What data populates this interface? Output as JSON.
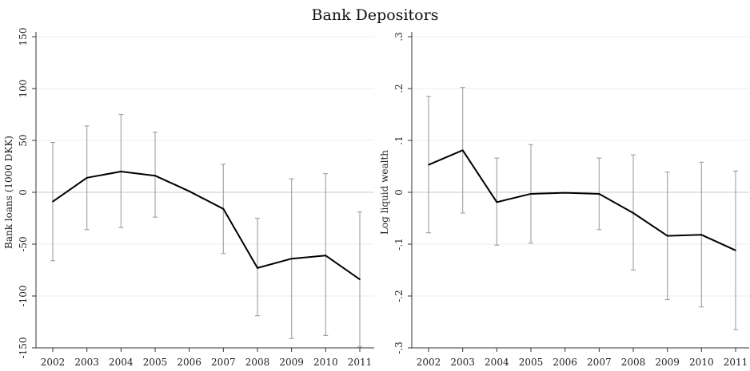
{
  "figure_title": "Bank Depositors",
  "chart_data": [
    {
      "type": "line",
      "title": "",
      "xlabel": "",
      "ylabel": "Bank loans (1000 DKK)",
      "x": [
        2002,
        2003,
        2004,
        2005,
        2006,
        2007,
        2008,
        2009,
        2010,
        2011
      ],
      "ylim": [
        -150,
        150
      ],
      "yticks": [
        -150,
        -100,
        -50,
        0,
        50,
        100,
        150
      ],
      "ytick_labels": [
        "-150",
        "-100",
        "-50",
        "0",
        "50",
        "100",
        "150"
      ],
      "grid": true,
      "series": [
        {
          "values": [
            -9,
            14,
            20,
            16,
            1,
            -16,
            -73,
            -64,
            -61,
            -84
          ],
          "ci_lower": [
            -66,
            -36,
            -34,
            -24,
            null,
            -59,
            -119,
            -141,
            -138,
            -149
          ],
          "ci_upper": [
            48,
            64,
            75,
            58,
            null,
            27,
            -25,
            13,
            18,
            -19
          ]
        }
      ]
    },
    {
      "type": "line",
      "title": "",
      "xlabel": "",
      "ylabel": "Log liquid wealth",
      "x": [
        2002,
        2003,
        2004,
        2005,
        2006,
        2007,
        2008,
        2009,
        2010,
        2011
      ],
      "ylim": [
        -0.3,
        0.3
      ],
      "yticks": [
        -0.3,
        -0.2,
        -0.1,
        0,
        0.1,
        0.2,
        0.3
      ],
      "ytick_labels": [
        "-.3",
        "-.2",
        "-.1",
        "0",
        ".1",
        ".2",
        ".3"
      ],
      "grid": true,
      "series": [
        {
          "values": [
            0.053,
            0.081,
            -0.019,
            -0.003,
            -0.001,
            -0.003,
            -0.04,
            -0.084,
            -0.082,
            -0.112
          ],
          "ci_lower": [
            -0.078,
            -0.04,
            -0.102,
            -0.098,
            null,
            -0.072,
            -0.15,
            -0.207,
            -0.221,
            -0.265
          ],
          "ci_upper": [
            0.185,
            0.202,
            0.066,
            0.092,
            null,
            0.066,
            0.072,
            0.039,
            0.058,
            0.041
          ]
        }
      ]
    }
  ],
  "colors": {
    "line": "#000000",
    "ci": "#a6a6a6",
    "grid": "#ececec",
    "zero_line": "#c8c8c8",
    "axis": "#333333"
  }
}
